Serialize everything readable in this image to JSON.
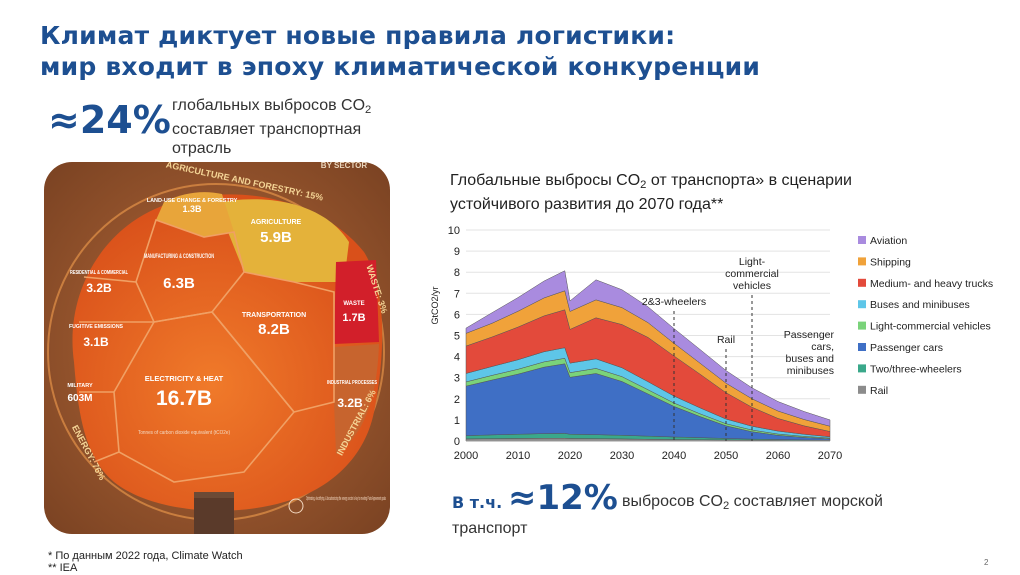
{
  "header": {
    "title_line1": "Климат диктует новые правила логистики:",
    "title_line2": "мир входит в эпоху климатической конкуренции"
  },
  "stat_transport": {
    "value": "≈24%",
    "text_line1": "глобальных выбросов CO",
    "text_line1_sub": "2",
    "text_line2": "составляет транспортная",
    "text_line3": "отрасль"
  },
  "infographic": {
    "outer_labels": {
      "agriculture": "AGRICULTURE AND FORESTRY: 15%",
      "waste": "WASTE: 3%",
      "industrial": "INDUSTRIAL: 6%",
      "energy": "ENERGY: 76%",
      "corner": "BY SECTOR"
    },
    "cells": [
      {
        "name": "LAND-USE CHANGE & FORESTRY",
        "value": "1.3B"
      },
      {
        "name": "AGRICULTURE",
        "value": "5.9B"
      },
      {
        "name": "MANUFACTURING & CONSTRUCTION",
        "value": "6.3B"
      },
      {
        "name": "RESIDENTIAL & COMMERCIAL",
        "value": "3.2B"
      },
      {
        "name": "FUGITIVE EMISSIONS",
        "value": "3.1B"
      },
      {
        "name": "TRANSPORTATION",
        "value": "8.2B"
      },
      {
        "name": "WASTE",
        "value": "1.7B"
      },
      {
        "name": "MILITARY",
        "value": "603M"
      },
      {
        "name": "ELECTRICITY & HEAT",
        "value": "16.7B"
      },
      {
        "name": "INDUSTRIAL PROCESSES",
        "value": "3.2B"
      }
    ],
    "unit_note": "Tonnes of carbon dioxide equivalent (tCO2e)",
    "bottom_note": "Optimizing, electrifying, & decarbonizing the energy sector is key to meeting Paris Agreement goals"
  },
  "chart_title": {
    "line1_a": "Глобальные выбросы CO",
    "line1_sub": "2",
    "line1_b": " от транспорта» в сценарии",
    "line2": "устойчивого развития до 2070 года**"
  },
  "chart_data": {
    "type": "area",
    "stacked": true,
    "ylabel": "GtCO2/yr",
    "ylim": [
      0,
      10
    ],
    "yticks": [
      0,
      1,
      2,
      3,
      4,
      5,
      6,
      7,
      8,
      9,
      10
    ],
    "xlim": [
      2000,
      2070
    ],
    "xticks": [
      2000,
      2010,
      2020,
      2030,
      2040,
      2050,
      2060,
      2070
    ],
    "x": [
      2000,
      2005,
      2010,
      2015,
      2019,
      2020,
      2025,
      2030,
      2035,
      2040,
      2045,
      2050,
      2055,
      2060,
      2065,
      2070
    ],
    "series": [
      {
        "name": "Rail",
        "color": "#8c8c8c",
        "values": [
          0.1,
          0.11,
          0.12,
          0.13,
          0.13,
          0.12,
          0.11,
          0.1,
          0.08,
          0.07,
          0.06,
          0.05,
          0.04,
          0.03,
          0.02,
          0.02
        ]
      },
      {
        "name": "Two/three-wheelers",
        "color": "#3aa88a",
        "values": [
          0.15,
          0.18,
          0.2,
          0.22,
          0.23,
          0.2,
          0.19,
          0.17,
          0.15,
          0.12,
          0.1,
          0.07,
          0.05,
          0.04,
          0.03,
          0.02
        ]
      },
      {
        "name": "Passenger cars",
        "color": "#3f6fc5",
        "values": [
          2.35,
          2.6,
          2.85,
          3.15,
          3.3,
          2.7,
          2.9,
          2.55,
          2.0,
          1.45,
          1.0,
          0.6,
          0.35,
          0.2,
          0.12,
          0.06
        ]
      },
      {
        "name": "Light-commercial vehicles",
        "color": "#7ad37a",
        "values": [
          0.2,
          0.22,
          0.23,
          0.25,
          0.26,
          0.22,
          0.24,
          0.23,
          0.2,
          0.16,
          0.13,
          0.1,
          0.08,
          0.06,
          0.05,
          0.04
        ]
      },
      {
        "name": "Buses and minibuses",
        "color": "#5ec6e8",
        "values": [
          0.4,
          0.42,
          0.45,
          0.48,
          0.5,
          0.45,
          0.45,
          0.42,
          0.38,
          0.33,
          0.28,
          0.22,
          0.18,
          0.14,
          0.1,
          0.06
        ]
      },
      {
        "name": "Medium- and heavy trucks",
        "color": "#e34a3b",
        "values": [
          1.3,
          1.4,
          1.55,
          1.7,
          1.8,
          1.6,
          1.95,
          2.05,
          2.1,
          1.9,
          1.6,
          1.25,
          0.9,
          0.6,
          0.4,
          0.25
        ]
      },
      {
        "name": "Shipping",
        "color": "#f0a23a",
        "values": [
          0.6,
          0.65,
          0.75,
          0.85,
          0.9,
          0.85,
          0.85,
          0.8,
          0.7,
          0.6,
          0.52,
          0.45,
          0.4,
          0.35,
          0.3,
          0.25
        ]
      },
      {
        "name": "Aviation",
        "color": "#a98bdf",
        "values": [
          0.25,
          0.5,
          0.65,
          0.8,
          0.95,
          0.5,
          0.95,
          0.85,
          0.75,
          0.7,
          0.65,
          0.6,
          0.52,
          0.45,
          0.38,
          0.3
        ]
      }
    ],
    "annotations": [
      {
        "text": "2&3-wheelers",
        "x": 2040
      },
      {
        "text": "Rail",
        "x": 2050
      },
      {
        "text": "Light-commercial vehicles",
        "x": 2055
      },
      {
        "text": "Passenger cars, buses and minibuses",
        "x": 2070
      }
    ],
    "legend_order": [
      "Aviation",
      "Shipping",
      "Medium- and heavy trucks",
      "Buses and minibuses",
      "Light-commercial vehicles",
      "Passenger cars",
      "Two/three-wheelers",
      "Rail"
    ]
  },
  "stat_shipping": {
    "prefix": "В т.ч.",
    "value": "≈12%",
    "text_a": "выбросов CO",
    "text_sub": "2",
    "text_b": " составляет морской",
    "text_line2": "транспорт"
  },
  "footnotes": {
    "line1": "* По данным 2022 года, Climate Watch",
    "line2": "** IEA"
  },
  "page_number": "2"
}
